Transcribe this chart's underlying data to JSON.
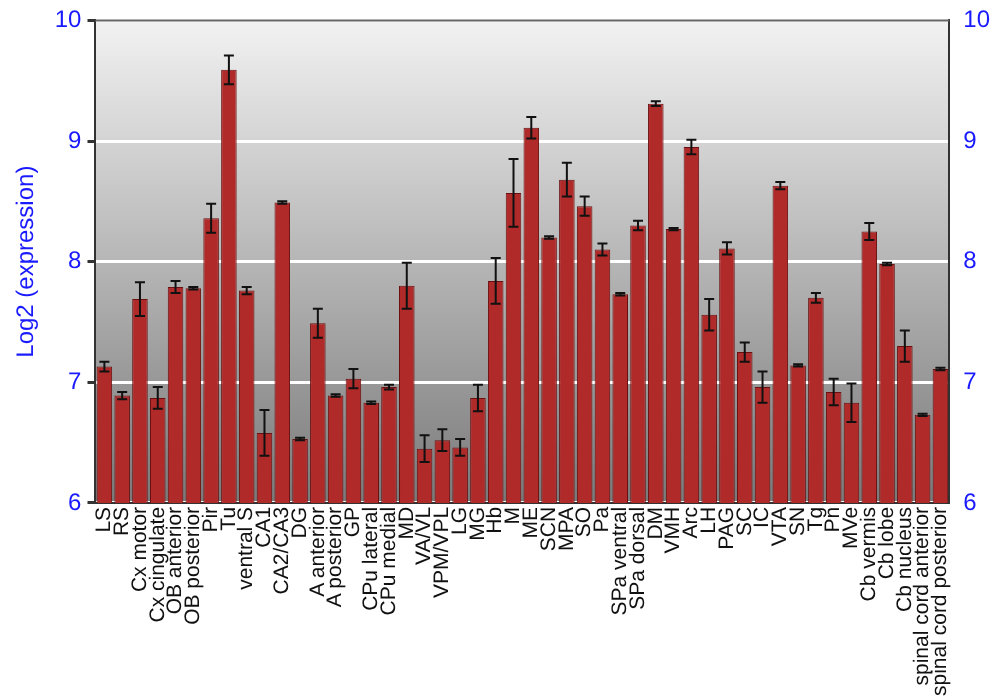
{
  "chart_data": {
    "type": "bar",
    "ylabel": "Log2 (expression)",
    "categories": [
      "LS",
      "RS",
      "Cx motor",
      "Cx cingulate",
      "OB anterior",
      "OB posterior",
      "Pir",
      "Tu",
      "ventral S",
      "CA1",
      "CA2/CA3",
      "DG",
      "A anterior",
      "A posterior",
      "GP",
      "CPu lateral",
      "CPu medial",
      "MD",
      "VA/VL",
      "VPM/VPL",
      "LG",
      "MG",
      "Hb",
      "M",
      "ME",
      "SCN",
      "MPA",
      "SO",
      "Pa",
      "SPa ventral",
      "SPa dorsal",
      "DM",
      "VMH",
      "Arc",
      "LH",
      "PAG",
      "SC",
      "IC",
      "VTA",
      "SN",
      "Tg",
      "Pn",
      "MVe",
      "Cb vermis",
      "Cb lobe",
      "Cb nucleus",
      "spinal cord anterior",
      "spinal cord posterior"
    ],
    "values": [
      7.13,
      6.89,
      7.69,
      6.87,
      7.79,
      7.78,
      8.36,
      9.59,
      7.76,
      6.58,
      8.49,
      6.53,
      7.49,
      6.89,
      7.03,
      6.83,
      6.96,
      7.8,
      6.45,
      6.52,
      6.46,
      6.87,
      7.84,
      8.57,
      9.11,
      8.2,
      8.68,
      8.46,
      8.1,
      7.73,
      8.3,
      9.31,
      8.27,
      8.95,
      7.56,
      8.11,
      7.25,
      6.96,
      8.63,
      7.14,
      7.7,
      6.92,
      6.83,
      8.25,
      7.98,
      7.3,
      6.73,
      7.11
    ],
    "errors": [
      0.04,
      0.03,
      0.14,
      0.09,
      0.05,
      0.01,
      0.12,
      0.12,
      0.03,
      0.19,
      0.01,
      0.01,
      0.12,
      0.01,
      0.08,
      0.01,
      0.02,
      0.19,
      0.11,
      0.09,
      0.07,
      0.11,
      0.19,
      0.28,
      0.09,
      0.01,
      0.14,
      0.08,
      0.05,
      0.01,
      0.04,
      0.02,
      0.01,
      0.06,
      0.13,
      0.05,
      0.08,
      0.13,
      0.03,
      0.01,
      0.04,
      0.11,
      0.16,
      0.07,
      0.01,
      0.13,
      0.01,
      0.01
    ],
    "color": "#b02a2a",
    "ylim": [
      6,
      10
    ],
    "yticks": [
      6,
      7,
      8,
      9,
      10
    ],
    "y2lim": [
      6,
      10
    ],
    "y2ticks": [
      6,
      7,
      8,
      9,
      10
    ],
    "grid": "y",
    "legend": false
  }
}
